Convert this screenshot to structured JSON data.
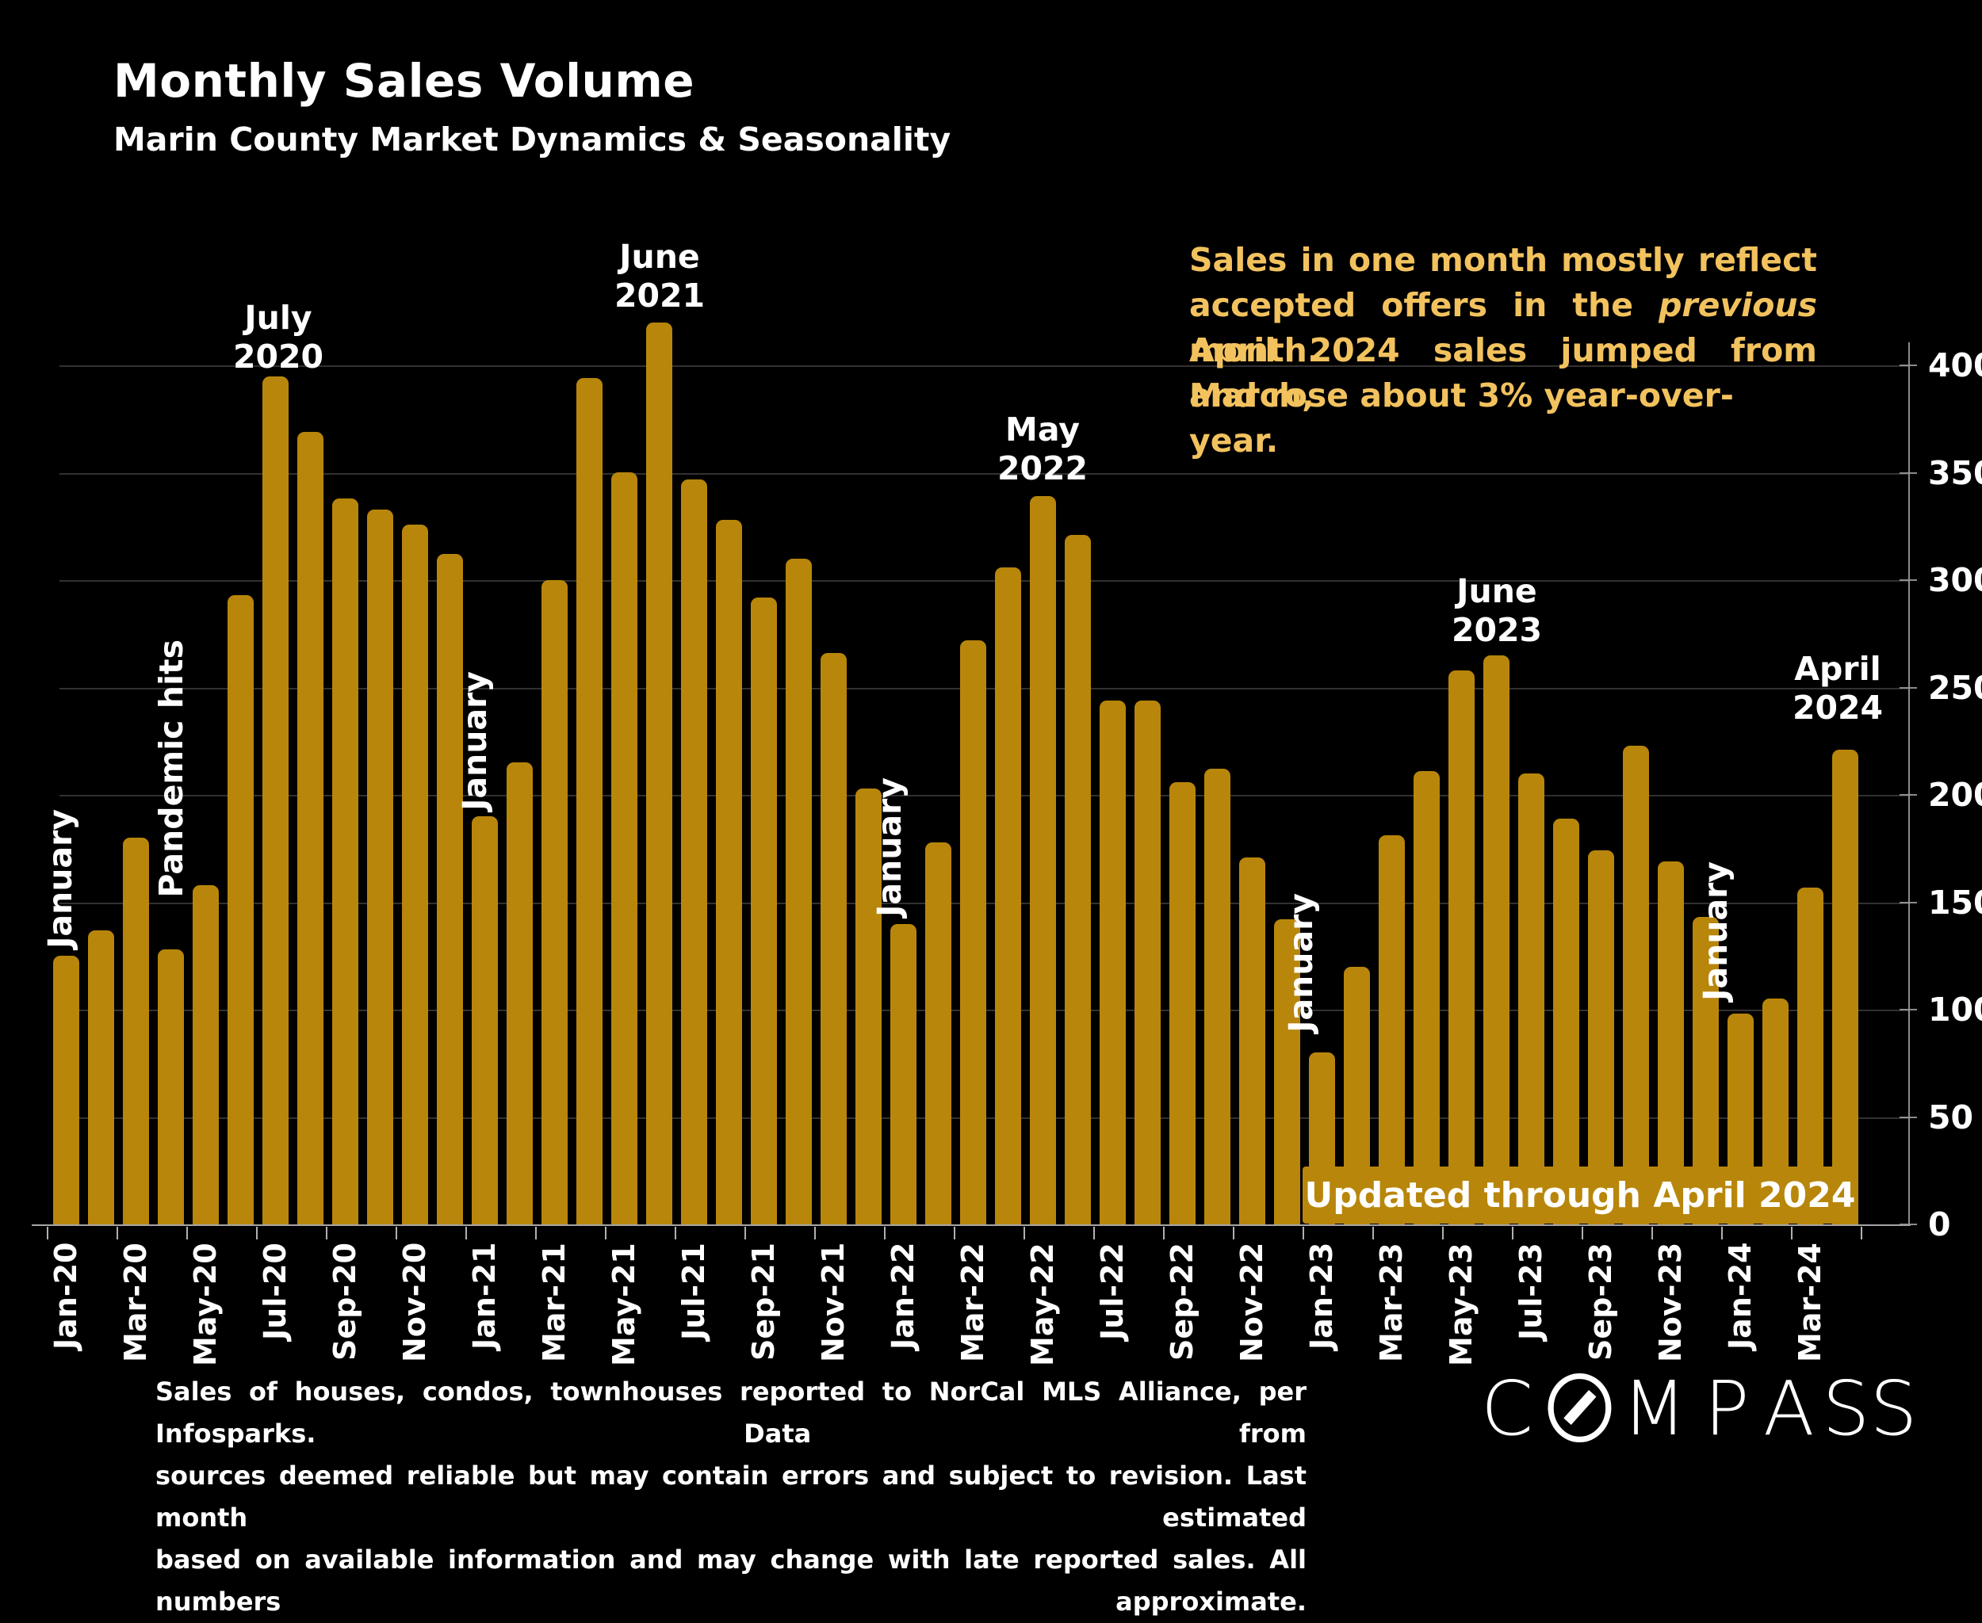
{
  "header": {
    "title": "Monthly Sales Volume",
    "subtitle": "Marin County Market Dynamics & Seasonality"
  },
  "note": {
    "line1": "Sales in one month mostly reflect",
    "line2_pre": "accepted offers in the ",
    "line2_italic": "previous",
    "line2_post": " month.",
    "line3": "April 2024 sales jumped from March,",
    "line4": "and rose about 3% year-over-year.",
    "color": "#F2C25E"
  },
  "annotations": {
    "july_2020": {
      "line1": "July",
      "line2": "2020"
    },
    "june_2021": {
      "line1": "June",
      "line2": "2021"
    },
    "may_2022": {
      "line1": "May",
      "line2": "2022"
    },
    "june_2023": {
      "line1": "June",
      "line2": "2023"
    },
    "april_2024": {
      "line1": "April",
      "line2": "2024"
    },
    "january": "January",
    "pandemic": "Pandemic hits"
  },
  "banner": {
    "text": "Updated through April 2024",
    "color": "#B8860B"
  },
  "footer": {
    "line1": "Sales of houses, condos, townhouses reported to NorCal MLS Alliance, per Infosparks. Data from",
    "line2": "sources deemed reliable but may contain errors and subject to revision. Last month estimated",
    "line3": "based on available information and may change with late reported sales. All numbers approximate."
  },
  "logo": {
    "brand": "COMPASS"
  },
  "chart_data": {
    "type": "bar",
    "title": "Monthly Sales Volume",
    "xlabel": "",
    "ylabel": "",
    "bar_color": "#B8860B",
    "background": "#000000",
    "grid": true,
    "legend": "none",
    "yticks": [
      0,
      50,
      100,
      150,
      200,
      250,
      300,
      350,
      400
    ],
    "ylim": [
      0,
      420
    ],
    "yaxis_side": "right",
    "xtick_labels": [
      "Jan-20",
      "Mar-20",
      "May-20",
      "Jul-20",
      "Sep-20",
      "Nov-20",
      "Jan-21",
      "Mar-21",
      "May-21",
      "Jul-21",
      "Sep-21",
      "Nov-21",
      "Jan-22",
      "Mar-22",
      "May-22",
      "Jul-22",
      "Sep-22",
      "Nov-22",
      "Jan-23",
      "Mar-23",
      "May-23",
      "Jul-23",
      "Sep-23",
      "Nov-23",
      "Jan-24",
      "Mar-24"
    ],
    "categories": [
      "Jan-20",
      "Feb-20",
      "Mar-20",
      "Apr-20",
      "May-20",
      "Jun-20",
      "Jul-20",
      "Aug-20",
      "Sep-20",
      "Oct-20",
      "Nov-20",
      "Dec-20",
      "Jan-21",
      "Feb-21",
      "Mar-21",
      "Apr-21",
      "May-21",
      "Jun-21",
      "Jul-21",
      "Aug-21",
      "Sep-21",
      "Oct-21",
      "Nov-21",
      "Dec-21",
      "Jan-22",
      "Feb-22",
      "Mar-22",
      "Apr-22",
      "May-22",
      "Jun-22",
      "Jul-22",
      "Aug-22",
      "Sep-22",
      "Oct-22",
      "Nov-22",
      "Dec-22",
      "Jan-23",
      "Feb-23",
      "Mar-23",
      "Apr-23",
      "May-23",
      "Jun-23",
      "Jul-23",
      "Aug-23",
      "Sep-23",
      "Oct-23",
      "Nov-23",
      "Dec-23",
      "Jan-24",
      "Feb-24",
      "Mar-24",
      "Apr-24"
    ],
    "values": [
      125,
      137,
      180,
      128,
      158,
      293,
      395,
      369,
      338,
      333,
      326,
      312,
      190,
      215,
      300,
      394,
      350,
      420,
      347,
      328,
      292,
      310,
      266,
      203,
      140,
      178,
      272,
      306,
      339,
      321,
      244,
      244,
      206,
      212,
      171,
      142,
      80,
      120,
      181,
      211,
      258,
      265,
      210,
      189,
      174,
      223,
      169,
      143,
      98,
      105,
      157,
      221
    ]
  }
}
